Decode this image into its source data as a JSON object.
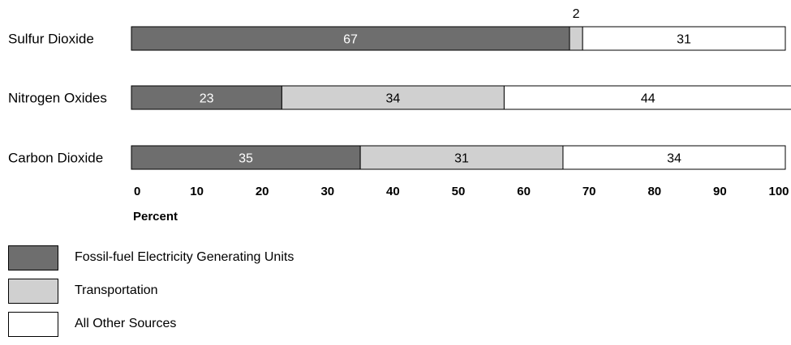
{
  "chart_data": {
    "type": "bar",
    "orientation": "horizontal",
    "stacked": true,
    "categories": [
      "Sulfur Dioxide",
      "Nitrogen Oxides",
      "Carbon Dioxide"
    ],
    "series": [
      {
        "name": "Fossil-fuel Electricity Generating Units",
        "values": [
          67,
          23,
          35
        ],
        "color": "#6e6e6e"
      },
      {
        "name": "Transportation",
        "values": [
          2,
          34,
          31
        ],
        "color": "#d0d0d0"
      },
      {
        "name": "All Other Sources",
        "values": [
          31,
          44,
          34
        ],
        "color": "#ffffff"
      }
    ],
    "xlabel": "Percent",
    "xlim": [
      0,
      100
    ],
    "xticks": [
      "0",
      "10",
      "20",
      "30",
      "40",
      "50",
      "60",
      "70",
      "80",
      "90",
      "100"
    ],
    "legend_position": "bottom-left",
    "grid": false
  }
}
